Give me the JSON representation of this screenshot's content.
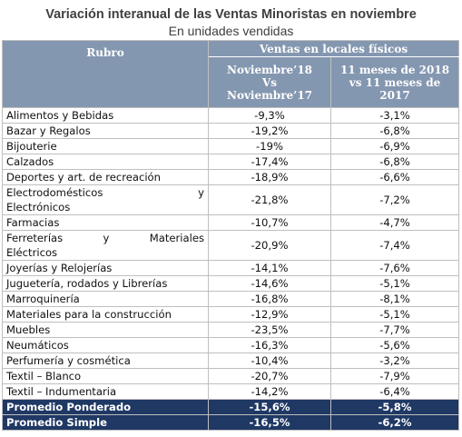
{
  "title": "Variación interanual de las Ventas Minoristas en noviembre",
  "subtitle": "En unidades vendidas",
  "table": {
    "header": {
      "rubro": "Rubro",
      "group": "Ventas en locales físicos",
      "col1": [
        "Noviembre’18",
        "Vs",
        "Noviembre’17"
      ],
      "col2": [
        "11 meses de 2018",
        "vs 11 meses de",
        "2017"
      ]
    },
    "rows": [
      [
        [
          "Alimentos y Bebidas"
        ],
        "-9,3%",
        "-3,1%"
      ],
      [
        [
          "Bazar y Regalos"
        ],
        "-19,2%",
        "-6,8%"
      ],
      [
        [
          "Bijouterie"
        ],
        "-19%",
        "-6,9%"
      ],
      [
        [
          "Calzados"
        ],
        "-17,4%",
        "-6,8%"
      ],
      [
        [
          "Deportes y art. de recreación"
        ],
        "-18,9%",
        "-6,6%"
      ],
      [
        [
          "Electrodomésticos y",
          "Electrónicos"
        ],
        "-21,8%",
        "-7,2%"
      ],
      [
        [
          "Farmacias"
        ],
        "-10,7%",
        "-4,7%"
      ],
      [
        [
          "Ferreterías y Materiales",
          "Eléctricos"
        ],
        "-20,9%",
        "-7,4%"
      ],
      [
        [
          "Joyerías y Relojerías"
        ],
        "-14,1%",
        "-7,6%"
      ],
      [
        [
          "Juguetería, rodados y Librerías"
        ],
        "-14,6%",
        "-5,1%"
      ],
      [
        [
          "Marroquinería"
        ],
        "-16,8%",
        "-8,1%"
      ],
      [
        [
          "Materiales para la construcción"
        ],
        "-12,9%",
        "-5,1%"
      ],
      [
        [
          "Muebles"
        ],
        "-23,5%",
        "-7,7%"
      ],
      [
        [
          "Neumáticos"
        ],
        "-16,3%",
        "-5,6%"
      ],
      [
        [
          "Perfumería y cosmética"
        ],
        "-10,4%",
        "-3,2%"
      ],
      [
        [
          "Textil – Blanco"
        ],
        "-20,7%",
        "-7,9%"
      ],
      [
        [
          "Textil – Indumentaria"
        ],
        "-14,2%",
        "-6,4%"
      ]
    ],
    "summary": [
      [
        "Promedio Ponderado",
        "-15,6%",
        "-5,8%"
      ],
      [
        "Promedio Simple",
        "-16,5%",
        "-6,2%"
      ]
    ]
  }
}
